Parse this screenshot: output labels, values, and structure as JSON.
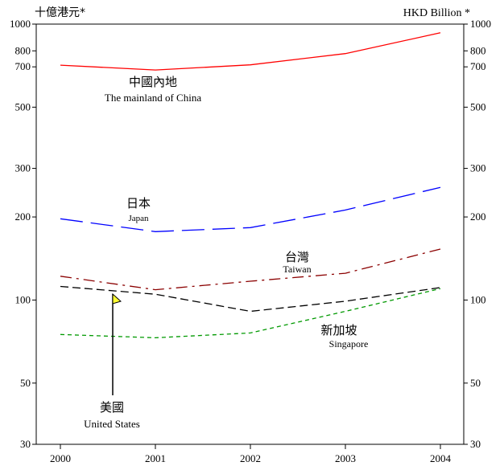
{
  "chart_data": {
    "type": "line",
    "y_scale": "log",
    "grid": false,
    "legend": "inline labels next to each line",
    "left_axis_title": "十億港元*",
    "right_axis_title": "HKD Billion *",
    "ylim": [
      30,
      1000
    ],
    "y_ticks": [
      1000,
      800,
      700,
      500,
      300,
      200,
      100,
      50,
      30
    ],
    "x": [
      "2000",
      "2001",
      "2002",
      "2003",
      "2004"
    ],
    "series": [
      {
        "name_zh": "中國內地",
        "name_en": "The mainland of China",
        "color": "#ff0000",
        "dash": "solid",
        "values": [
          710,
          682,
          712,
          782,
          930
        ]
      },
      {
        "name_zh": "日本",
        "name_en": "Japan",
        "color": "#0000ff",
        "dash": "long-dash",
        "values": [
          197,
          177,
          183,
          212,
          256
        ]
      },
      {
        "name_zh": "台灣",
        "name_en": "Taiwan",
        "color": "#8b0000",
        "dash": "dash-dot",
        "values": [
          122,
          109,
          117,
          125,
          153
        ]
      },
      {
        "name_zh": "美國",
        "name_en": "United States",
        "color": "#000000",
        "dash": "dash",
        "values": [
          112,
          105,
          91,
          99,
          111
        ]
      },
      {
        "name_zh": "新加坡",
        "name_en": "Singapore",
        "color": "#009900",
        "dash": "short-dash",
        "values": [
          75,
          73,
          76,
          91,
          110
        ]
      }
    ]
  }
}
